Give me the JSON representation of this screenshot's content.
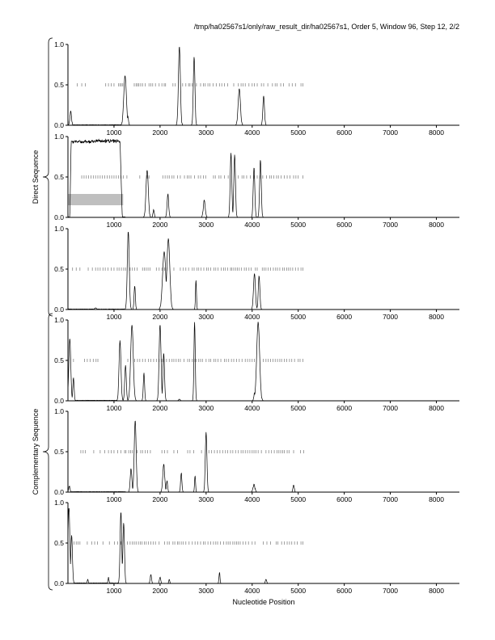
{
  "title": "/tmp/ha02567s1/only/raw_result_dir/ha02567s1, Order 5, Window 96, Step 12, 2/2",
  "xlabel": "Nucleotide Position",
  "group_labels": [
    "Direct Sequence",
    "Complementary Sequence"
  ],
  "colors": {
    "line": "#000000",
    "tick": "#888888",
    "highlight": "#bfbfbf",
    "axis": "#000000"
  },
  "chart_data": {
    "type": "line",
    "xlim": [
      0,
      8500
    ],
    "ylim": [
      0,
      1
    ],
    "xticks": [
      1000,
      2000,
      3000,
      4000,
      5000,
      6000,
      7000,
      8000
    ],
    "yticks": [
      0.0,
      0.5,
      1.0
    ],
    "ytick_labels": [
      "0.0",
      "0.5",
      "1.0"
    ],
    "grid": false,
    "panels": [
      {
        "group": "Direct Sequence",
        "peaks": [
          [
            60,
            0.18,
            25
          ],
          [
            1240,
            0.62,
            40
          ],
          [
            1300,
            0.12,
            20
          ],
          [
            2420,
            0.98,
            30
          ],
          [
            2740,
            0.86,
            25
          ],
          [
            3720,
            0.46,
            35
          ],
          [
            4250,
            0.37,
            25
          ]
        ],
        "markers": [
          200,
          300,
          380,
          820,
          880,
          940,
          1000,
          1100,
          1130,
          1160,
          1190,
          1440,
          1480,
          1510,
          1540,
          1580,
          1620,
          1680,
          1760,
          1800,
          1840,
          1900,
          1980,
          2040,
          2090,
          2120,
          2280,
          2330,
          2490,
          2560,
          2620,
          2650,
          2700,
          2790,
          2880,
          2940,
          2980,
          3040,
          3080,
          3150,
          3220,
          3290,
          3340,
          3400,
          3470,
          3600,
          3700,
          3760,
          3800,
          3850,
          3930,
          4000,
          4050,
          4110,
          4200,
          4250,
          4340,
          4440,
          4500,
          4540,
          4620,
          4680,
          4800,
          4870,
          4940,
          5060,
          5100
        ],
        "shade": []
      },
      {
        "group": "Direct Sequence",
        "peaks": [
          [
            1720,
            0.6,
            35
          ],
          [
            1860,
            0.1,
            20
          ],
          [
            2170,
            0.3,
            25
          ],
          [
            2960,
            0.22,
            30
          ],
          [
            3540,
            0.8,
            25
          ],
          [
            3620,
            0.78,
            25
          ],
          [
            4040,
            0.62,
            25
          ],
          [
            4180,
            0.72,
            25
          ]
        ],
        "plateaus": [
          [
            40,
            70,
            720,
            770,
            0.96
          ],
          [
            530,
            570,
            1130,
            1180,
            0.97
          ]
        ],
        "markers": [
          300,
          350,
          400,
          450,
          500,
          550,
          600,
          650,
          700,
          750,
          800,
          850,
          900,
          950,
          1000,
          1050,
          1100,
          1150,
          1200,
          1280,
          1560,
          1720,
          1760,
          2060,
          2110,
          2160,
          2200,
          2260,
          2300,
          2380,
          2440,
          2530,
          2590,
          2630,
          2670,
          2750,
          2830,
          2880,
          2940,
          2990,
          3160,
          3200,
          3280,
          3320,
          3400,
          3480,
          3700,
          3780,
          3820,
          3880,
          3960,
          4040,
          4110,
          4170,
          4230,
          4310,
          4380,
          4420,
          4470,
          4530,
          4570,
          4630,
          4700,
          4760,
          4820,
          4900,
          4950,
          5000,
          5100
        ],
        "shade": [
          0,
          1200,
          0.15,
          0.29
        ]
      },
      {
        "group": "Direct Sequence",
        "peaks": [
          [
            600,
            0.02,
            30
          ],
          [
            1310,
            0.98,
            30
          ],
          [
            1450,
            0.3,
            20
          ],
          [
            2090,
            0.72,
            50
          ],
          [
            2180,
            0.88,
            45
          ],
          [
            2780,
            0.38,
            15
          ],
          [
            4050,
            0.45,
            30
          ],
          [
            4150,
            0.42,
            25
          ]
        ],
        "markers": [
          100,
          180,
          260,
          440,
          530,
          600,
          650,
          700,
          760,
          810,
          870,
          940,
          1000,
          1070,
          1110,
          1160,
          1210,
          1250,
          1350,
          1400,
          1450,
          1500,
          1620,
          1660,
          1700,
          1740,
          1780,
          1920,
          1980,
          2040,
          2100,
          2150,
          2300,
          2440,
          2500,
          2560,
          2620,
          2700,
          2740,
          2800,
          2840,
          2890,
          2950,
          3010,
          3050,
          3100,
          3170,
          3210,
          3260,
          3330,
          3380,
          3420,
          3470,
          3530,
          3560,
          3600,
          3640,
          3680,
          3720,
          3770,
          3830,
          3870,
          3930,
          3980,
          4070,
          4110,
          4220,
          4260,
          4300,
          4350,
          4400,
          4460,
          4510,
          4550,
          4600,
          4660,
          4700,
          4750,
          4790,
          4830,
          4880,
          4940,
          5000,
          5060,
          5100
        ],
        "shade": []
      },
      {
        "group": "Complementary Sequence",
        "peaks": [
          [
            40,
            0.78,
            30
          ],
          [
            120,
            0.3,
            20
          ],
          [
            1130,
            0.75,
            30
          ],
          [
            1250,
            0.45,
            25
          ],
          [
            1390,
            0.95,
            40
          ],
          [
            1650,
            0.35,
            20
          ],
          [
            2000,
            0.95,
            30
          ],
          [
            2080,
            0.6,
            25
          ],
          [
            2420,
            0.02,
            25
          ],
          [
            2750,
            0.98,
            20
          ],
          [
            4050,
            0.1,
            20
          ],
          [
            4130,
            0.98,
            45
          ]
        ],
        "markers": [
          120,
          360,
          420,
          480,
          550,
          610,
          650,
          1300,
          1450,
          1510,
          1560,
          1620,
          1680,
          1750,
          1800,
          1860,
          1920,
          1980,
          2040,
          2080,
          2140,
          2200,
          2260,
          2300,
          2350,
          2400,
          2440,
          2520,
          2600,
          2640,
          2700,
          2740,
          2780,
          2840,
          2880,
          2920,
          3000,
          3060,
          3100,
          3170,
          3210,
          3260,
          3320,
          3400,
          3440,
          3490,
          3550,
          3600,
          3660,
          3720,
          3780,
          3850,
          3900,
          3950,
          4000,
          4050,
          4240,
          4300,
          4350,
          4400,
          4450,
          4500,
          4550,
          4600,
          4640,
          4700,
          4750,
          4810,
          4860,
          4920,
          5000,
          5040,
          5100
        ],
        "shade": []
      },
      {
        "group": "Complementary Sequence",
        "peaks": [
          [
            30,
            0.08,
            20
          ],
          [
            1370,
            0.3,
            25
          ],
          [
            1460,
            0.9,
            30
          ],
          [
            2080,
            0.35,
            30
          ],
          [
            2150,
            0.15,
            20
          ],
          [
            2460,
            0.25,
            20
          ],
          [
            2760,
            0.22,
            15
          ],
          [
            3000,
            0.75,
            25
          ],
          [
            4040,
            0.1,
            30
          ],
          [
            4900,
            0.1,
            20
          ]
        ],
        "markers": [
          280,
          330,
          380,
          560,
          700,
          800,
          880,
          940,
          1000,
          1080,
          1150,
          1230,
          1260,
          1320,
          1360,
          1400,
          1500,
          1580,
          1620,
          1680,
          1730,
          1790,
          2040,
          2100,
          2160,
          2300,
          2380,
          2600,
          2650,
          2730,
          2900,
          3060,
          3120,
          3180,
          3240,
          3300,
          3360,
          3420,
          3470,
          3530,
          3580,
          3640,
          3700,
          3760,
          3800,
          3850,
          3900,
          3950,
          4000,
          4040,
          4080,
          4130,
          4200,
          4300,
          4360,
          4420,
          4480,
          4540,
          4580,
          4620,
          4660,
          4700,
          4760,
          4800,
          4900,
          5050,
          5120
        ],
        "shade": []
      },
      {
        "group": "Complementary Sequence",
        "peaks": [
          [
            20,
            0.95,
            30
          ],
          [
            80,
            0.6,
            25
          ],
          [
            430,
            0.05,
            15
          ],
          [
            880,
            0.08,
            15
          ],
          [
            1150,
            0.9,
            25
          ],
          [
            1210,
            0.76,
            25
          ],
          [
            1800,
            0.12,
            20
          ],
          [
            2000,
            0.08,
            20
          ],
          [
            2200,
            0.05,
            15
          ],
          [
            3290,
            0.15,
            15
          ],
          [
            4300,
            0.05,
            20
          ]
        ],
        "markers": [
          130,
          180,
          220,
          260,
          420,
          520,
          580,
          640,
          760,
          900,
          1010,
          1080,
          1150,
          1290,
          1350,
          1400,
          1440,
          1480,
          1530,
          1570,
          1610,
          1660,
          1700,
          1750,
          1800,
          1850,
          1900,
          1980,
          2100,
          2160,
          2200,
          2280,
          2320,
          2380,
          2410,
          2460,
          2500,
          2560,
          2630,
          2700,
          2760,
          2820,
          2880,
          2940,
          2980,
          3040,
          3100,
          3160,
          3210,
          3250,
          3310,
          3380,
          3440,
          3480,
          3520,
          3580,
          3620,
          3660,
          3700,
          3740,
          3800,
          3860,
          3920,
          4000,
          4060,
          4240,
          4320,
          4400,
          4520,
          4560,
          4640,
          4700,
          4760,
          4810,
          4860,
          4920,
          4980,
          5060,
          5100
        ],
        "shade": []
      }
    ]
  }
}
